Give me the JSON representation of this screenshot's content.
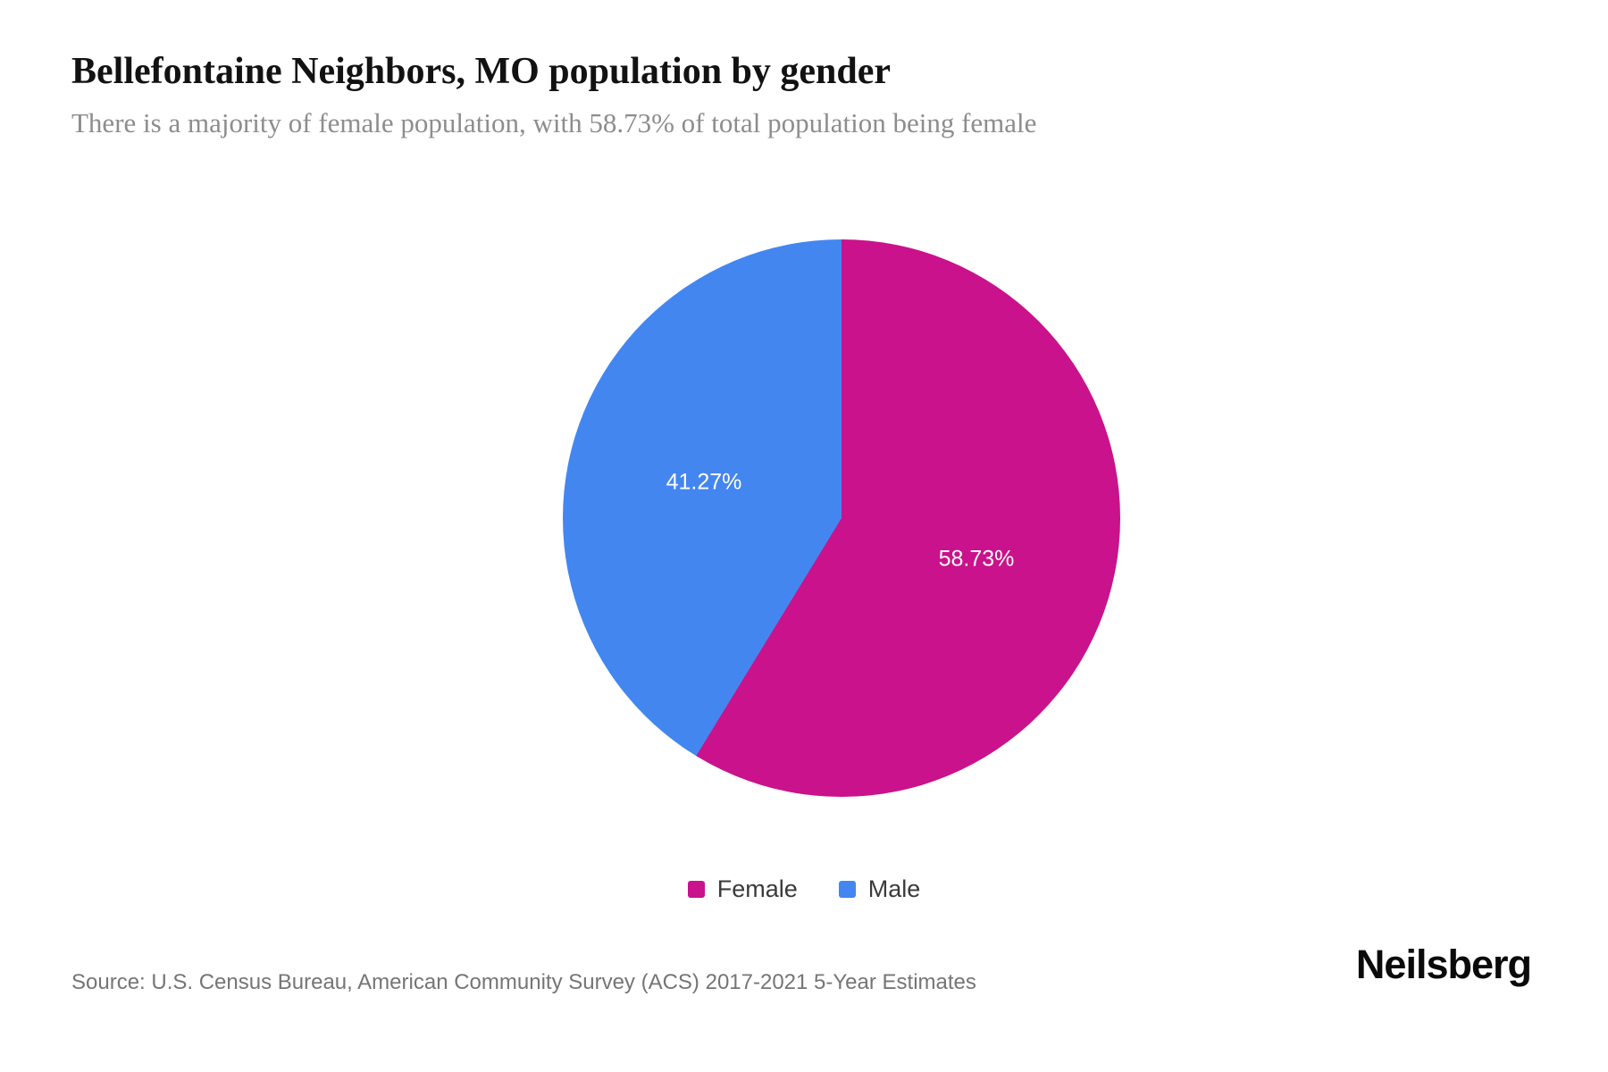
{
  "header": {
    "title": "Bellefontaine Neighbors, MO population by gender",
    "subtitle": "There is a majority of female population, with 58.73% of total population being female"
  },
  "chart_data": {
    "type": "pie",
    "title": "Bellefontaine Neighbors, MO population by gender",
    "categories": [
      "Female",
      "Male"
    ],
    "values": [
      58.73,
      41.27
    ],
    "value_labels": [
      "58.73%",
      "41.27%"
    ],
    "colors": [
      "#C9128C",
      "#4486F0"
    ],
    "unit": "percent of total population",
    "start_angle": "12 o'clock",
    "direction": "clockwise",
    "legend_position": "bottom",
    "inside_label_color": "#ffffff"
  },
  "legend": {
    "items": [
      {
        "label": "Female",
        "color": "#C9128C"
      },
      {
        "label": "Male",
        "color": "#4486F0"
      }
    ]
  },
  "footer": {
    "source": "Source: U.S. Census Bureau, American Community Survey (ACS) 2017-2021 5-Year Estimates",
    "brand": "Neilsberg"
  }
}
